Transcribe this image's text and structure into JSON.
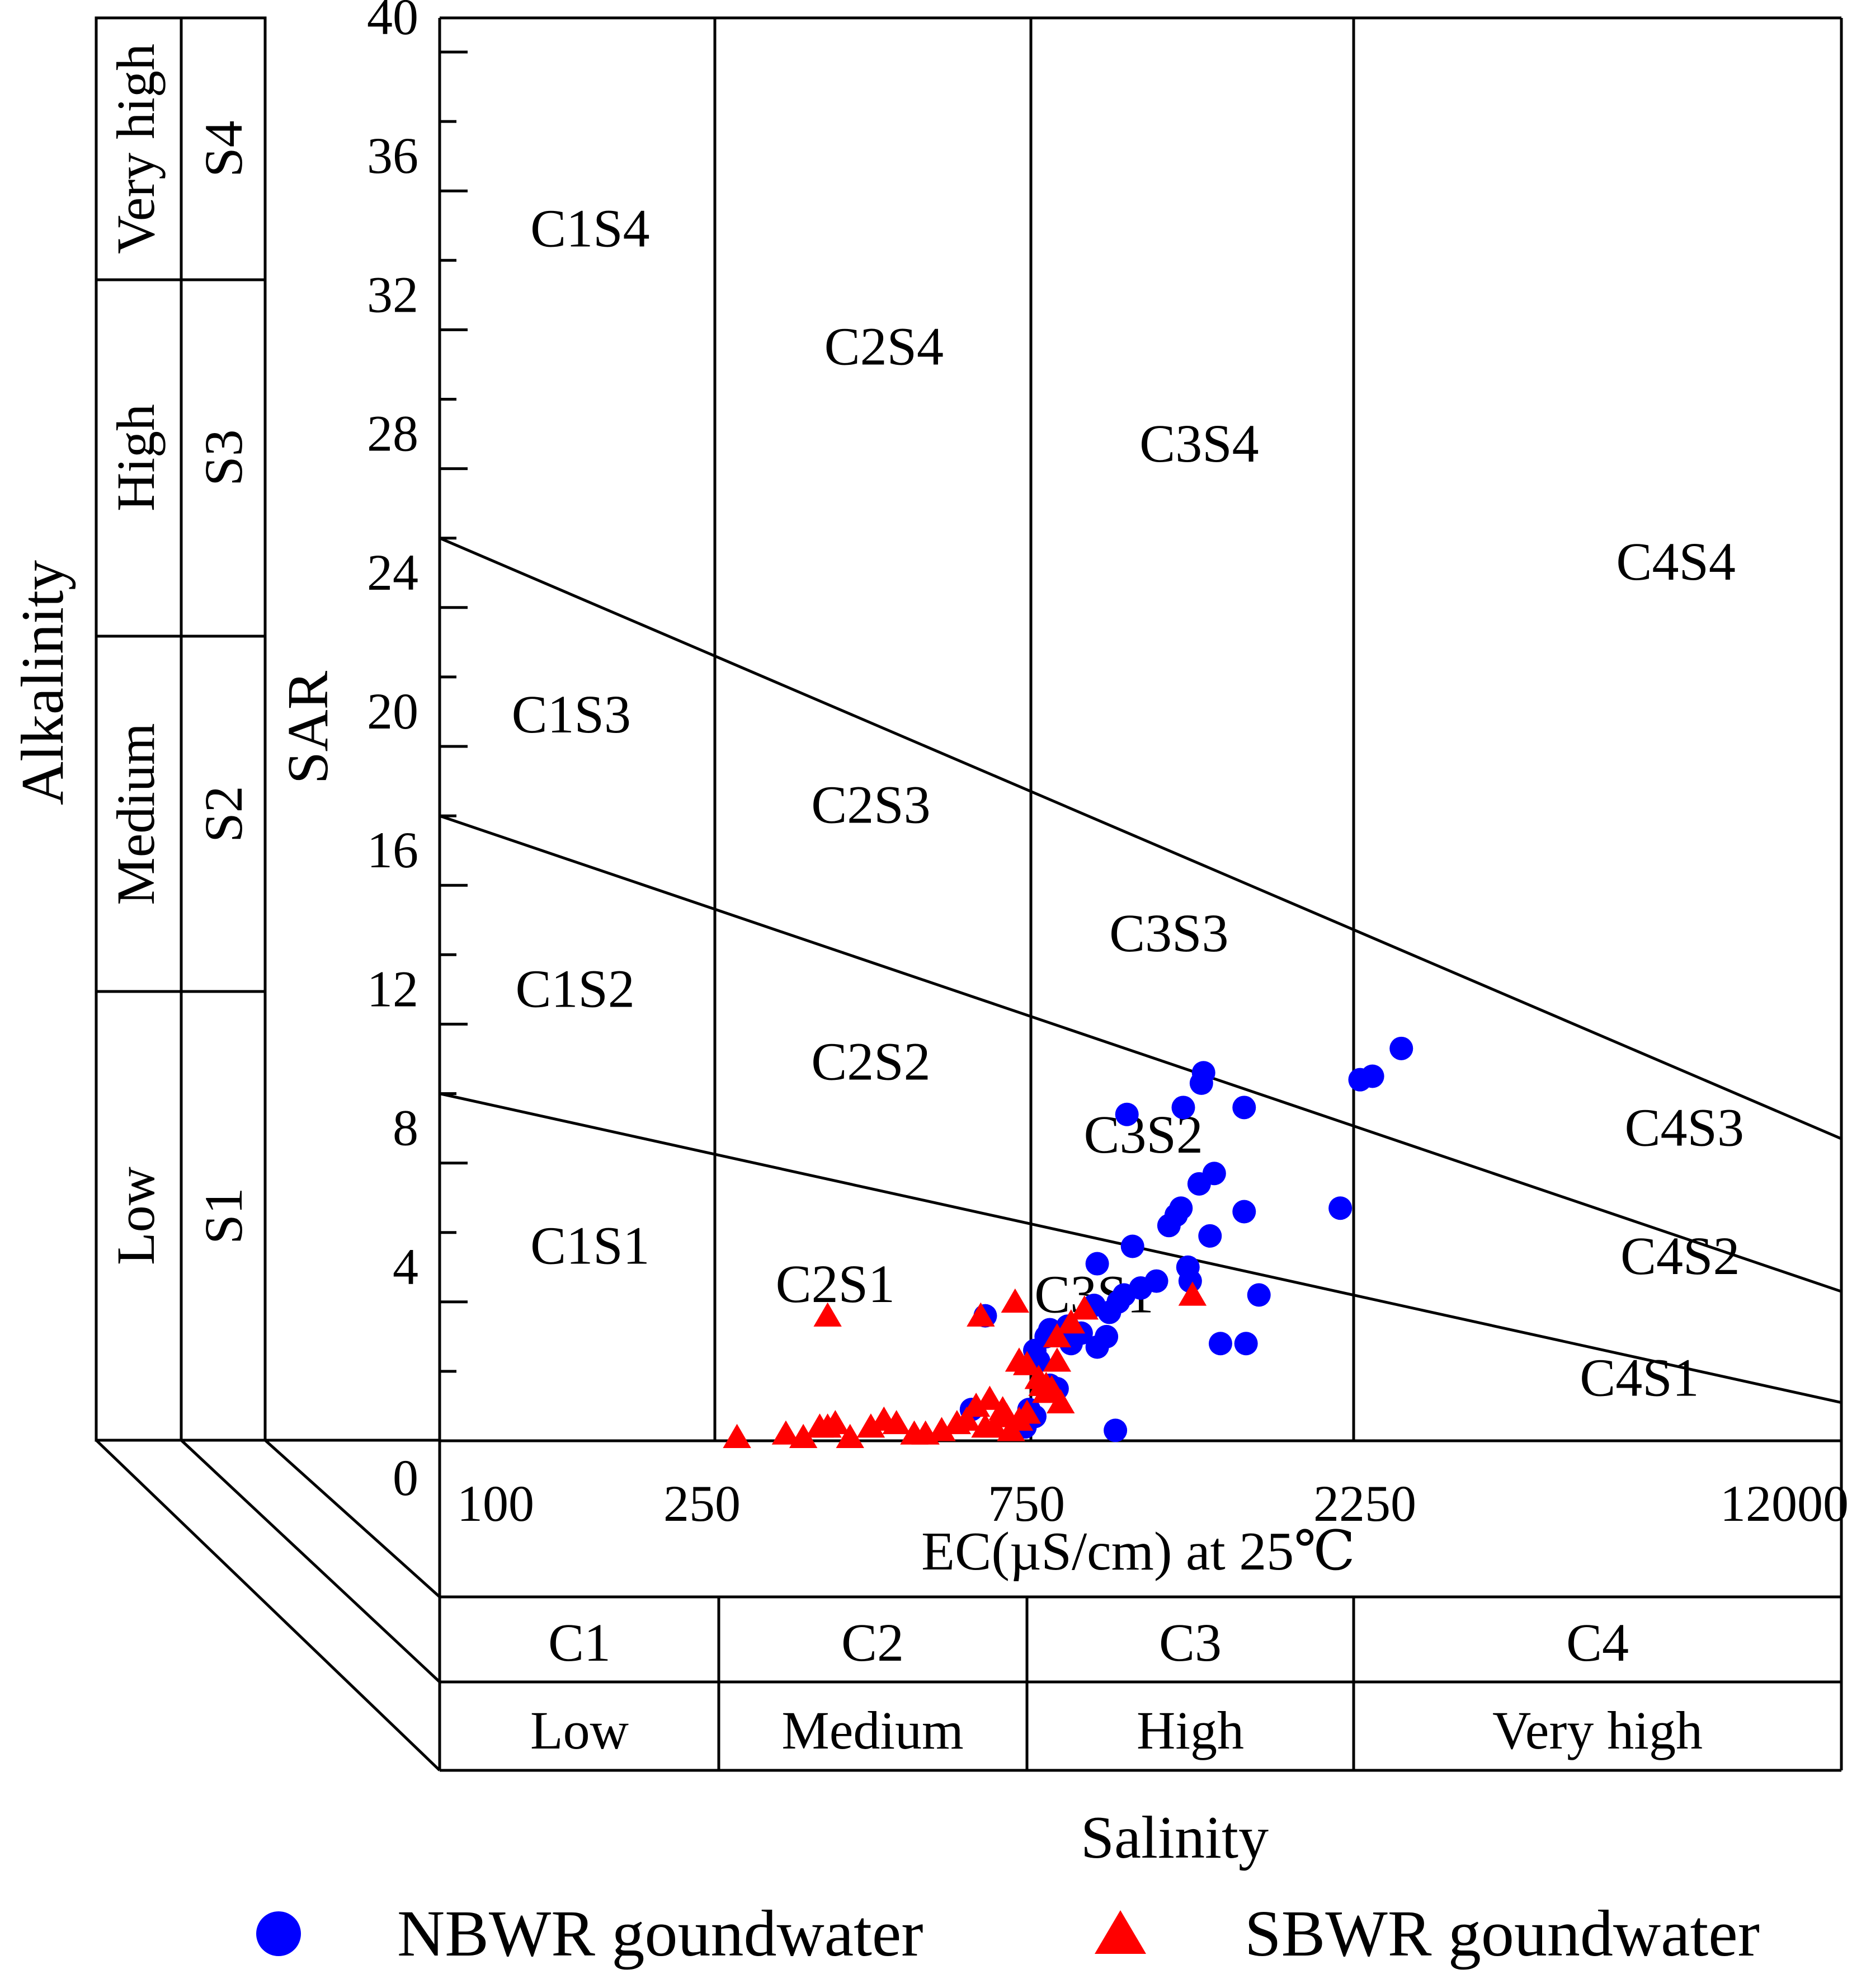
{
  "chart_data": {
    "type": "scatter",
    "title": "",
    "xlabel": "EC(µS/cm) at 25℃",
    "ylabel": "SAR",
    "x_scale": "piecewise",
    "x_ticks": [
      "100",
      "250",
      "750",
      "2250",
      "12000"
    ],
    "y_ticks": [
      "0",
      "4",
      "8",
      "12",
      "16",
      "20",
      "24",
      "28",
      "32",
      "36",
      "40"
    ],
    "ylim": [
      0,
      40
    ],
    "grid": false,
    "legend_position": "bottom",
    "outer_axis_titles": {
      "y": "Alkalinity",
      "x": "Salinity"
    },
    "sodium_classes": [
      {
        "code": "S4",
        "level": "Very high"
      },
      {
        "code": "S3",
        "level": "High"
      },
      {
        "code": "S2",
        "level": "Medium"
      },
      {
        "code": "S1",
        "level": "Low"
      }
    ],
    "salinity_classes": [
      {
        "code": "C1",
        "level": "Low"
      },
      {
        "code": "C2",
        "level": "Medium"
      },
      {
        "code": "C3",
        "level": "High"
      },
      {
        "code": "C4",
        "level": "Very high"
      }
    ],
    "zone_boundaries": [
      {
        "name": "S1-S2",
        "points": [
          [
            100,
            10.0
          ],
          [
            12000,
            1.1
          ]
        ]
      },
      {
        "name": "S2-S3",
        "points": [
          [
            100,
            18.0
          ],
          [
            12000,
            4.3
          ]
        ]
      },
      {
        "name": "S3-S4",
        "points": [
          [
            100,
            26.0
          ],
          [
            12000,
            8.7
          ]
        ]
      }
    ],
    "zone_labels": [
      {
        "text": "C1S4",
        "ec": 165,
        "sar": 34.4
      },
      {
        "text": "C2S4",
        "ec": 450,
        "sar": 31.0
      },
      {
        "text": "C3S4",
        "ec": 1330,
        "sar": 28.2
      },
      {
        "text": "C4S4",
        "ec": 6800,
        "sar": 24.8
      },
      {
        "text": "C1S3",
        "ec": 155,
        "sar": 20.4
      },
      {
        "text": "C2S3",
        "ec": 430,
        "sar": 17.8
      },
      {
        "text": "C3S3",
        "ec": 1200,
        "sar": 14.1
      },
      {
        "text": "C1S2",
        "ec": 157,
        "sar": 12.5
      },
      {
        "text": "C2S2",
        "ec": 430,
        "sar": 10.4
      },
      {
        "text": "C3S2",
        "ec": 1100,
        "sar": 8.3
      },
      {
        "text": "C4S3",
        "ec": 7000,
        "sar": 8.5
      },
      {
        "text": "C1S1",
        "ec": 165,
        "sar": 5.1
      },
      {
        "text": "C2S1",
        "ec": 380,
        "sar": 4.0
      },
      {
        "text": "C3S1",
        "ec": 930,
        "sar": 3.7
      },
      {
        "text": "C4S2",
        "ec": 6900,
        "sar": 4.8
      },
      {
        "text": "C4S1",
        "ec": 6000,
        "sar": 1.3
      }
    ],
    "series": [
      {
        "name": "NBWR goundwater",
        "color": "#0000ff",
        "marker": "circle",
        "points": [
          [
            2650,
            11.3
          ],
          [
            2400,
            10.5
          ],
          [
            2300,
            10.4
          ],
          [
            1350,
            10.6
          ],
          [
            1340,
            10.3
          ],
          [
            1550,
            9.6
          ],
          [
            1260,
            9.6
          ],
          [
            1040,
            9.4
          ],
          [
            1400,
            7.7
          ],
          [
            1330,
            7.4
          ],
          [
            1250,
            6.7
          ],
          [
            1230,
            6.5
          ],
          [
            1550,
            6.6
          ],
          [
            2150,
            6.7
          ],
          [
            1200,
            6.2
          ],
          [
            1380,
            5.9
          ],
          [
            1060,
            5.6
          ],
          [
            940,
            5.1
          ],
          [
            1280,
            5.0
          ],
          [
            1290,
            4.6
          ],
          [
            1150,
            4.6
          ],
          [
            1090,
            4.4
          ],
          [
            1030,
            4.2
          ],
          [
            1010,
            4.0
          ],
          [
            1630,
            4.2
          ],
          [
            930,
            3.9
          ],
          [
            850,
            3.3
          ],
          [
            980,
            3.7
          ],
          [
            890,
            3.1
          ],
          [
            840,
            3.1
          ],
          [
            800,
            3.2
          ],
          [
            790,
            3.0
          ],
          [
            860,
            2.8
          ],
          [
            940,
            2.7
          ],
          [
            970,
            3.0
          ],
          [
            1430,
            2.8
          ],
          [
            1560,
            2.8
          ],
          [
            760,
            2.6
          ],
          [
            770,
            2.3
          ],
          [
            800,
            1.6
          ],
          [
            820,
            1.5
          ],
          [
            745,
            0.9
          ],
          [
            760,
            0.7
          ],
          [
            735,
            0.4
          ],
          [
            640,
            3.6
          ],
          [
            610,
            0.9
          ],
          [
            1000,
            0.3
          ]
        ]
      },
      {
        "name": "SBWR goundwater",
        "color": "#ff0000",
        "marker": "triangle",
        "points": [
          [
            370,
            3.6
          ],
          [
            630,
            3.6
          ],
          [
            710,
            4.0
          ],
          [
            1300,
            4.2
          ],
          [
            900,
            3.8
          ],
          [
            860,
            3.4
          ],
          [
            820,
            3.0
          ],
          [
            720,
            2.3
          ],
          [
            740,
            2.2
          ],
          [
            820,
            2.3
          ],
          [
            770,
            1.8
          ],
          [
            780,
            1.6
          ],
          [
            790,
            1.6
          ],
          [
            790,
            1.4
          ],
          [
            805,
            1.5
          ],
          [
            830,
            1.1
          ],
          [
            650,
            1.2
          ],
          [
            620,
            1.0
          ],
          [
            680,
            0.9
          ],
          [
            690,
            0.7
          ],
          [
            740,
            0.8
          ],
          [
            720,
            0.6
          ],
          [
            600,
            0.6
          ],
          [
            580,
            0.5
          ],
          [
            660,
            0.4
          ],
          [
            640,
            0.4
          ],
          [
            550,
            0.3
          ],
          [
            520,
            0.2
          ],
          [
            500,
            0.2
          ],
          [
            470,
            0.5
          ],
          [
            450,
            0.6
          ],
          [
            430,
            0.4
          ],
          [
            400,
            0.1
          ],
          [
            370,
            0.4
          ],
          [
            360,
            0.4
          ],
          [
            320,
            0.2
          ],
          [
            340,
            0.1
          ],
          [
            270,
            0.1
          ],
          [
            380,
            0.5
          ],
          [
            700,
            0.3
          ]
        ]
      }
    ]
  }
}
